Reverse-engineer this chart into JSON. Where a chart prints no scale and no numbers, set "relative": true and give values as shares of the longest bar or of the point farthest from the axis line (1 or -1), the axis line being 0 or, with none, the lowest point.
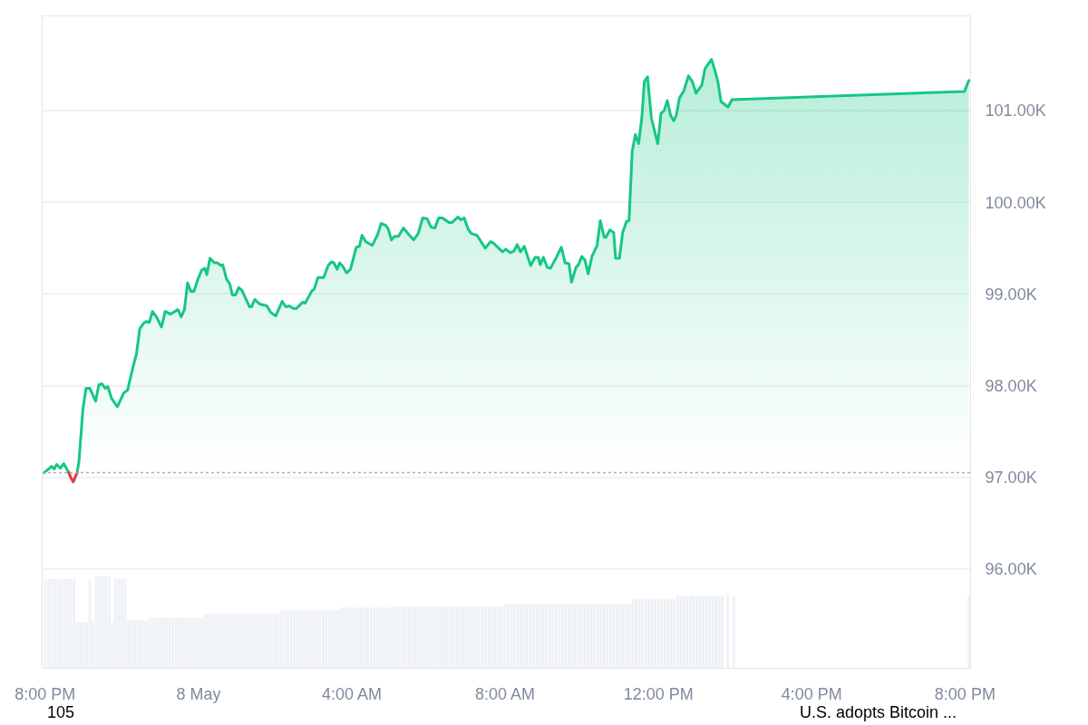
{
  "chart_data": [
    {
      "type": "area",
      "xlim": [
        "--05-07T19:56",
        "--05-08T20:08"
      ],
      "xticks": [
        {
          "value": "--05-07T20:00",
          "label": "8:00 PM"
        },
        {
          "value": "--05-08T00:00",
          "label": "8 May"
        },
        {
          "value": "--05-08T04:00",
          "label": "4:00 AM"
        },
        {
          "value": "--05-08T08:00",
          "label": "8:00 AM"
        },
        {
          "value": "--05-08T12:00",
          "label": "12:00 PM"
        },
        {
          "value": "--05-08T16:00",
          "label": "4:00 PM"
        },
        {
          "value": "--05-08T20:00",
          "label": "8:00 PM"
        }
      ],
      "ylim": [
        94920,
        102030
      ],
      "yticks": [
        {
          "value": 96000,
          "label": "96.00K"
        },
        {
          "value": 97000,
          "label": "97.00K"
        },
        {
          "value": 98000,
          "label": "98.00K"
        },
        {
          "value": 99000,
          "label": "99.00K"
        },
        {
          "value": 100000,
          "label": "100.00K"
        },
        {
          "value": 101000,
          "label": "101.00K"
        }
      ],
      "grid": "y",
      "ref_lines": [
        {
          "axis": "y",
          "value": 97050,
          "color": "#a6b0c3",
          "line_style": "dotted"
        }
      ],
      "annotations": [
        "105",
        "U.S. adopts Bitcoin ..."
      ],
      "series": [
        {
          "type": "area",
          "color": "#16c784",
          "x": [
            "--05-07T19:58",
            "--05-07T20:02",
            "--05-07T20:10",
            "--05-07T20:14",
            "--05-07T20:18",
            "--05-07T20:24",
            "--05-07T20:29",
            "--05-07T20:33",
            "--05-07T20:37",
            "--05-07T20:44",
            "--05-07T20:50",
            "--05-07T20:53",
            "--05-07T20:59",
            "--05-07T21:04",
            "--05-07T21:10",
            "--05-07T21:19",
            "--05-07T21:24",
            "--05-07T21:29",
            "--05-07T21:34",
            "--05-07T21:38",
            "--05-07T21:44",
            "--05-07T21:53",
            "--05-07T22:03",
            "--05-07T22:09",
            "--05-07T22:17",
            "--05-07T22:23",
            "--05-07T22:28",
            "--05-07T22:34",
            "--05-07T22:38",
            "--05-07T22:43",
            "--05-07T22:48",
            "--05-07T22:55",
            "--05-07T23:02",
            "--05-07T23:08",
            "--05-07T23:16",
            "--05-07T23:28",
            "--05-07T23:33",
            "--05-07T23:38",
            "--05-07T23:43",
            "--05-07T23:48",
            "--05-07T23:53",
            "--05-07T23:59",
            "--05-08T00:05",
            "--05-08T00:10",
            "--05-08T00:13",
            "--05-08T00:18",
            "--05-08T00:25",
            "--05-08T00:30",
            "--05-08T00:35",
            "--05-08T00:38",
            "--05-08T00:44",
            "--05-08T00:49",
            "--05-08T00:53",
            "--05-08T00:58",
            "--05-08T01:03",
            "--05-08T01:08",
            "--05-08T01:20",
            "--05-08T01:23",
            "--05-08T01:28",
            "--05-08T01:36",
            "--05-08T01:47",
            "--05-08T01:53",
            "--05-08T02:01",
            "--05-08T02:11",
            "--05-08T02:17",
            "--05-08T02:22",
            "--05-08T02:29",
            "--05-08T02:33",
            "--05-08T02:43",
            "--05-08T02:47",
            "--05-08T02:58",
            "--05-08T03:01",
            "--05-08T03:07",
            "--05-08T03:16",
            "--05-08T03:23",
            "--05-08T03:28",
            "--05-08T03:32",
            "--05-08T03:37",
            "--05-08T03:41",
            "--05-08T03:46",
            "--05-08T03:52",
            "--05-08T03:58",
            "--05-08T04:07",
            "--05-08T04:12",
            "--05-08T04:16",
            "--05-08T04:22",
            "--05-08T04:27",
            "--05-08T04:32",
            "--05-08T04:40",
            "--05-08T04:46",
            "--05-08T04:53",
            "--05-08T04:57",
            "--05-08T05:02",
            "--05-08T05:07",
            "--05-08T05:13",
            "--05-08T05:21",
            "--05-08T05:28",
            "--05-08T05:37",
            "--05-08T05:44",
            "--05-08T05:51",
            "--05-08T05:58",
            "--05-08T06:04",
            "--05-08T06:10",
            "--05-08T06:16",
            "--05-08T06:22",
            "--05-08T06:32",
            "--05-08T06:37",
            "--05-08T06:46",
            "--05-08T06:51",
            "--05-08T06:56",
            "--05-08T07:02",
            "--05-08T07:07",
            "--05-08T07:16",
            "--05-08T07:29",
            "--05-08T07:37",
            "--05-08T07:41",
            "--05-08T07:50",
            "--05-08T07:56",
            "--05-08T08:01",
            "--05-08T08:08",
            "--05-08T08:14",
            "--05-08T08:19",
            "--05-08T08:24",
            "--05-08T08:30",
            "--05-08T08:40",
            "--05-08T08:47",
            "--05-08T08:52",
            "--05-08T08:55",
            "--05-08T09:00",
            "--05-08T09:06",
            "--05-08T09:11",
            "--05-08T09:21",
            "--05-08T09:28",
            "--05-08T09:34",
            "--05-08T09:40",
            "--05-08T09:44",
            "--05-08T09:51",
            "--05-08T09:55",
            "--05-08T10:00",
            "--05-08T10:05",
            "--05-08T10:10",
            "--05-08T10:16",
            "--05-08T10:24",
            "--05-08T10:29",
            "--05-08T10:35",
            "--05-08T10:38",
            "--05-08T10:44",
            "--05-08T10:50",
            "--05-08T10:53",
            "--05-08T10:59",
            "--05-08T11:04",
            "--05-08T11:10",
            "--05-08T11:14",
            "--05-08T11:19",
            "--05-08T11:24",
            "--05-08T11:29",
            "--05-08T11:34",
            "--05-08T11:38",
            "--05-08T11:43",
            "--05-08T11:49",
            "--05-08T11:59",
            "--05-08T12:04",
            "--05-08T12:09",
            "--05-08T12:14",
            "--05-08T12:19",
            "--05-08T12:24",
            "--05-08T12:28",
            "--05-08T12:33",
            "--05-08T12:40",
            "--05-08T12:47",
            "--05-08T12:53",
            "--05-08T12:59",
            "--05-08T13:08",
            "--05-08T13:13",
            "--05-08T13:23",
            "--05-08T13:28",
            "--05-08T13:33",
            "--05-08T13:38",
            "--05-08T13:49",
            "--05-08T13:55",
            "--05-08T19:59",
            "--05-08T20:06"
          ],
          "values": [
            97050,
            97070,
            97120,
            97090,
            97140,
            97100,
            97150,
            97100,
            97050,
            null,
            97050,
            97180,
            97740,
            97970,
            97970,
            97830,
            98010,
            98020,
            97970,
            97990,
            97860,
            97770,
            97920,
            97950,
            98190,
            98350,
            98620,
            98680,
            98700,
            98690,
            98810,
            98740,
            98640,
            98810,
            98780,
            98830,
            98750,
            98830,
            99120,
            99030,
            99030,
            99160,
            99260,
            99280,
            99210,
            99390,
            99340,
            99340,
            99310,
            99320,
            99160,
            99110,
            98990,
            98990,
            99070,
            99040,
            98860,
            98860,
            98940,
            98890,
            98870,
            98800,
            98760,
            98920,
            98860,
            98870,
            98840,
            98840,
            98910,
            98900,
            99040,
            99050,
            99180,
            99180,
            99310,
            99350,
            99340,
            99270,
            99340,
            99300,
            99230,
            99270,
            99510,
            99520,
            99640,
            99570,
            99550,
            99530,
            99640,
            99770,
            99750,
            99710,
            99590,
            99630,
            99630,
            99720,
            99660,
            99590,
            99660,
            99830,
            99820,
            99730,
            99720,
            99830,
            99830,
            99780,
            99780,
            99840,
            99810,
            99830,
            99710,
            99660,
            99640,
            99500,
            99570,
            99560,
            99500,
            99460,
            99490,
            99450,
            99470,
            99540,
            99460,
            99520,
            99310,
            99400,
            99400,
            99320,
            99400,
            99290,
            99280,
            99410,
            99510,
            99340,
            99330,
            99130,
            99290,
            99320,
            99410,
            99370,
            99220,
            99410,
            99530,
            99800,
            99620,
            99620,
            99700,
            99670,
            99390,
            99390,
            99670,
            99790,
            99800,
            100560,
            100740,
            100640,
            100920,
            101320,
            101370,
            100920,
            100640,
            100970,
            101000,
            101110,
            100950,
            100890,
            100950,
            101140,
            101220,
            101380,
            101320,
            101190,
            101280,
            101460,
            101560,
            101450,
            101320,
            101100,
            101040,
            101120,
            101210,
            101330
          ]
        },
        {
          "type": "line",
          "color": "#ea3943",
          "x": [
            "--05-07T20:37",
            "--05-07T20:40",
            "--05-07T20:44",
            "--05-07T20:47",
            "--05-07T20:50"
          ],
          "values": [
            97050,
            97000,
            96950,
            97000,
            97050
          ]
        }
      ]
    },
    {
      "type": "bar",
      "relative": true,
      "tick_labels": false,
      "xlim": [
        "--05-07T19:56",
        "--05-08T20:08"
      ],
      "xticks": [
        {
          "value": "--05-07T20:00",
          "label": "8:00 PM"
        },
        {
          "value": "--05-08T00:00",
          "label": "8 May"
        },
        {
          "value": "--05-08T04:00",
          "label": "4:00 AM"
        },
        {
          "value": "--05-08T08:00",
          "label": "8:00 AM"
        },
        {
          "value": "--05-08T12:00",
          "label": "12:00 PM"
        },
        {
          "value": "--05-08T16:00",
          "label": "4:00 PM"
        },
        {
          "value": "--05-08T20:00",
          "label": "8:00 PM"
        }
      ],
      "color": "#eef1f5",
      "x": [
        "--05-07T20:00",
        "--05-07T20:05",
        "--05-07T20:10",
        "--05-07T20:15",
        "--05-07T20:20",
        "--05-07T20:25",
        "--05-07T20:30",
        "--05-07T20:35",
        "--05-07T20:40",
        "--05-07T20:45",
        "--05-07T20:50",
        "--05-07T20:55",
        "--05-07T21:00",
        "--05-07T21:05",
        "--05-07T21:10",
        "--05-07T21:15",
        "--05-07T21:20",
        "--05-07T21:25",
        "--05-07T21:30",
        "--05-07T21:35",
        "--05-07T21:40",
        "--05-07T21:45",
        "--05-07T21:50",
        "--05-07T21:55",
        "--05-07T22:00",
        "--05-07T22:05",
        "--05-07T22:10",
        "--05-07T22:15",
        "--05-07T22:20",
        "--05-07T22:25",
        "--05-07T22:30",
        "--05-07T22:35",
        "--05-07T22:40",
        "--05-07T22:45",
        "--05-07T22:50",
        "--05-07T22:55",
        "--05-07T23:00",
        "--05-07T23:05",
        "--05-07T23:10",
        "--05-07T23:15",
        "--05-07T23:20",
        "--05-07T23:25",
        "--05-07T23:30",
        "--05-07T23:35",
        "--05-07T23:40",
        "--05-07T23:45",
        "--05-07T23:50",
        "--05-07T23:55",
        "--05-08T00:00",
        "--05-08T00:05",
        "--05-08T00:10",
        "--05-08T00:15",
        "--05-08T00:20",
        "--05-08T00:25",
        "--05-08T00:30",
        "--05-08T00:35",
        "--05-08T00:40",
        "--05-08T00:45",
        "--05-08T00:50",
        "--05-08T00:55",
        "--05-08T01:00",
        "--05-08T01:05",
        "--05-08T01:10",
        "--05-08T01:15",
        "--05-08T01:20",
        "--05-08T01:25",
        "--05-08T01:30",
        "--05-08T01:35",
        "--05-08T01:40",
        "--05-08T01:45",
        "--05-08T01:50",
        "--05-08T01:55",
        "--05-08T02:00",
        "--05-08T02:05",
        "--05-08T02:10",
        "--05-08T02:15",
        "--05-08T02:20",
        "--05-08T02:25",
        "--05-08T02:30",
        "--05-08T02:35",
        "--05-08T02:40",
        "--05-08T02:45",
        "--05-08T02:50",
        "--05-08T02:55",
        "--05-08T03:00",
        "--05-08T03:05",
        "--05-08T03:10",
        "--05-08T03:15",
        "--05-08T03:20",
        "--05-08T03:25",
        "--05-08T03:30",
        "--05-08T03:35",
        "--05-08T03:40",
        "--05-08T03:45",
        "--05-08T03:50",
        "--05-08T03:55",
        "--05-08T04:00",
        "--05-08T04:05",
        "--05-08T04:10",
        "--05-08T04:15",
        "--05-08T04:20",
        "--05-08T04:25",
        "--05-08T04:30",
        "--05-08T04:35",
        "--05-08T04:40",
        "--05-08T04:45",
        "--05-08T04:50",
        "--05-08T04:55",
        "--05-08T05:00",
        "--05-08T05:05",
        "--05-08T05:10",
        "--05-08T05:15",
        "--05-08T05:20",
        "--05-08T05:25",
        "--05-08T05:30",
        "--05-08T05:35",
        "--05-08T05:40",
        "--05-08T05:45",
        "--05-08T05:50",
        "--05-08T05:55",
        "--05-08T06:00",
        "--05-08T06:05",
        "--05-08T06:10",
        "--05-08T06:15",
        "--05-08T06:20",
        "--05-08T06:25",
        "--05-08T06:30",
        "--05-08T06:35",
        "--05-08T06:40",
        "--05-08T06:45",
        "--05-08T06:50",
        "--05-08T06:55",
        "--05-08T07:00",
        "--05-08T07:05",
        "--05-08T07:10",
        "--05-08T07:15",
        "--05-08T07:20",
        "--05-08T07:25",
        "--05-08T07:30",
        "--05-08T07:35",
        "--05-08T07:40",
        "--05-08T07:45",
        "--05-08T07:50",
        "--05-08T07:55",
        "--05-08T08:00",
        "--05-08T08:05",
        "--05-08T08:10",
        "--05-08T08:15",
        "--05-08T08:20",
        "--05-08T08:25",
        "--05-08T08:30",
        "--05-08T08:35",
        "--05-08T08:40",
        "--05-08T08:45",
        "--05-08T08:50",
        "--05-08T08:55",
        "--05-08T09:00",
        "--05-08T09:05",
        "--05-08T09:10",
        "--05-08T09:15",
        "--05-08T09:20",
        "--05-08T09:25",
        "--05-08T09:30",
        "--05-08T09:35",
        "--05-08T09:40",
        "--05-08T09:45",
        "--05-08T09:50",
        "--05-08T09:55",
        "--05-08T10:00",
        "--05-08T10:05",
        "--05-08T10:10",
        "--05-08T10:15",
        "--05-08T10:20",
        "--05-08T10:25",
        "--05-08T10:30",
        "--05-08T10:35",
        "--05-08T10:40",
        "--05-08T10:45",
        "--05-08T10:50",
        "--05-08T10:55",
        "--05-08T11:00",
        "--05-08T11:05",
        "--05-08T11:10",
        "--05-08T11:15",
        "--05-08T11:20",
        "--05-08T11:25",
        "--05-08T11:30",
        "--05-08T11:35",
        "--05-08T11:40",
        "--05-08T11:45",
        "--05-08T11:50",
        "--05-08T11:55",
        "--05-08T12:00",
        "--05-08T12:05",
        "--05-08T12:10",
        "--05-08T12:15",
        "--05-08T12:20",
        "--05-08T12:25",
        "--05-08T12:30",
        "--05-08T12:35",
        "--05-08T12:40",
        "--05-08T12:45",
        "--05-08T12:50",
        "--05-08T12:55",
        "--05-08T13:00",
        "--05-08T13:05",
        "--05-08T13:10",
        "--05-08T13:15",
        "--05-08T13:20",
        "--05-08T13:25",
        "--05-08T13:30",
        "--05-08T13:35",
        "--05-08T13:40",
        "--05-08T13:49",
        "--05-08T13:58",
        "--05-08T20:06"
      ],
      "values": [
        0.97,
        0.97,
        0.97,
        0.97,
        0.97,
        0.97,
        0.97,
        0.97,
        0.97,
        0.97,
        0.5,
        0.5,
        0.5,
        0.5,
        0.97,
        0.5,
        1,
        1,
        1,
        1,
        1,
        0.5,
        0.98,
        0.98,
        0.98,
        0.98,
        0.52,
        0.52,
        0.52,
        0.52,
        0.52,
        0.52,
        0.52,
        0.55,
        0.55,
        0.55,
        0.55,
        0.55,
        0.55,
        0.55,
        0.55,
        0.55,
        0.55,
        0.55,
        0.55,
        0.55,
        0.55,
        0.55,
        0.55,
        0.55,
        0.59,
        0.59,
        0.59,
        0.59,
        0.59,
        0.59,
        0.59,
        0.59,
        0.59,
        0.59,
        0.59,
        0.59,
        0.59,
        0.59,
        0.59,
        0.59,
        0.59,
        0.59,
        0.59,
        0.59,
        0.59,
        0.59,
        0.59,
        0.59,
        0.63,
        0.63,
        0.63,
        0.63,
        0.63,
        0.63,
        0.63,
        0.63,
        0.63,
        0.63,
        0.63,
        0.63,
        0.63,
        0.63,
        0.63,
        0.63,
        0.63,
        0.63,
        0.63,
        0.66,
        0.66,
        0.66,
        0.66,
        0.66,
        0.66,
        0.66,
        0.66,
        0.66,
        0.66,
        0.66,
        0.66,
        0.66,
        0.66,
        0.66,
        0.66,
        0.67,
        0.67,
        0.67,
        0.67,
        0.67,
        0.67,
        0.67,
        0.67,
        0.67,
        0.67,
        0.67,
        0.67,
        0.67,
        0.67,
        0.67,
        0.67,
        0.67,
        0.67,
        0.67,
        0.67,
        0.67,
        0.67,
        0.67,
        0.67,
        0.67,
        0.67,
        0.67,
        0.67,
        0.67,
        0.67,
        0.67,
        0.67,
        0.67,
        0.67,
        0.67,
        0.7,
        0.7,
        0.7,
        0.7,
        0.7,
        0.7,
        0.7,
        0.7,
        0.7,
        0.7,
        0.7,
        0.7,
        0.7,
        0.7,
        0.7,
        0.7,
        0.7,
        0.7,
        0.7,
        0.7,
        0.7,
        0.7,
        0.7,
        0.7,
        0.7,
        0.7,
        0.7,
        0.7,
        0.7,
        0.7,
        0.7,
        0.7,
        0.7,
        0.7,
        0.7,
        0.7,
        0.7,
        0.7,
        0.7,
        0.7,
        0.75,
        0.75,
        0.75,
        0.75,
        0.75,
        0.75,
        0.75,
        0.75,
        0.75,
        0.75,
        0.75,
        0.75,
        0.75,
        0.75,
        0.79,
        0.79,
        0.79,
        0.79,
        0.79,
        0.79,
        0.79,
        0.79,
        0.79,
        0.79,
        0.79,
        0.79,
        0.79,
        0.79,
        0.79,
        0.81,
        0.79,
        0.79
      ]
    }
  ]
}
